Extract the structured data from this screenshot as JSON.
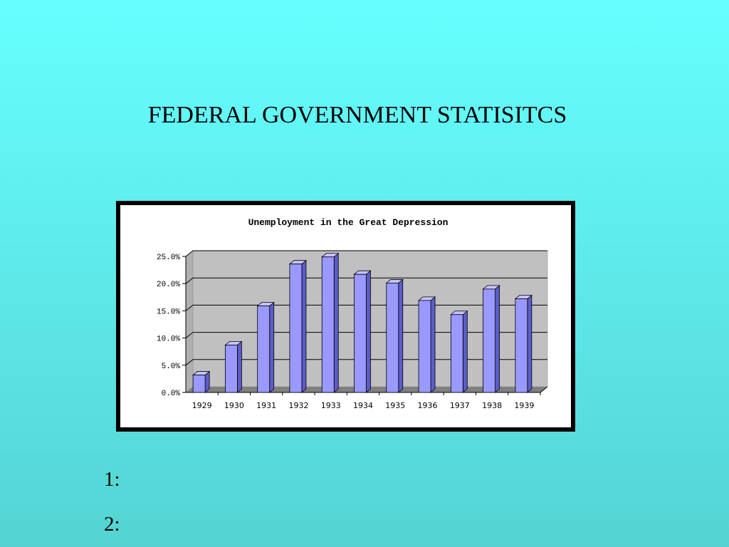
{
  "slide": {
    "title": "FEDERAL GOVERNMENT STATISITCS",
    "notes": [
      "1:",
      "2:"
    ]
  },
  "chart_data": {
    "type": "bar",
    "title": "Unemployment in the Great Depression",
    "categories": [
      "1929",
      "1930",
      "1931",
      "1932",
      "1933",
      "1934",
      "1935",
      "1936",
      "1937",
      "1938",
      "1939"
    ],
    "values": [
      3.2,
      8.7,
      15.9,
      23.6,
      24.9,
      21.7,
      20.1,
      16.9,
      14.3,
      19.0,
      17.2
    ],
    "ylim": [
      0,
      25
    ],
    "yticks": [
      0,
      5,
      10,
      15,
      20,
      25
    ],
    "ytick_labels": [
      "0.0%",
      "5.0%",
      "10.0%",
      "15.0%",
      "20.0%",
      "25.0%"
    ],
    "grid": true,
    "colors": {
      "bar_front": "#9999ff",
      "bar_side": "#5c5cc8",
      "bar_top": "#c4c4ff",
      "wall": "#c0c0c0",
      "floor": "#808080"
    }
  }
}
